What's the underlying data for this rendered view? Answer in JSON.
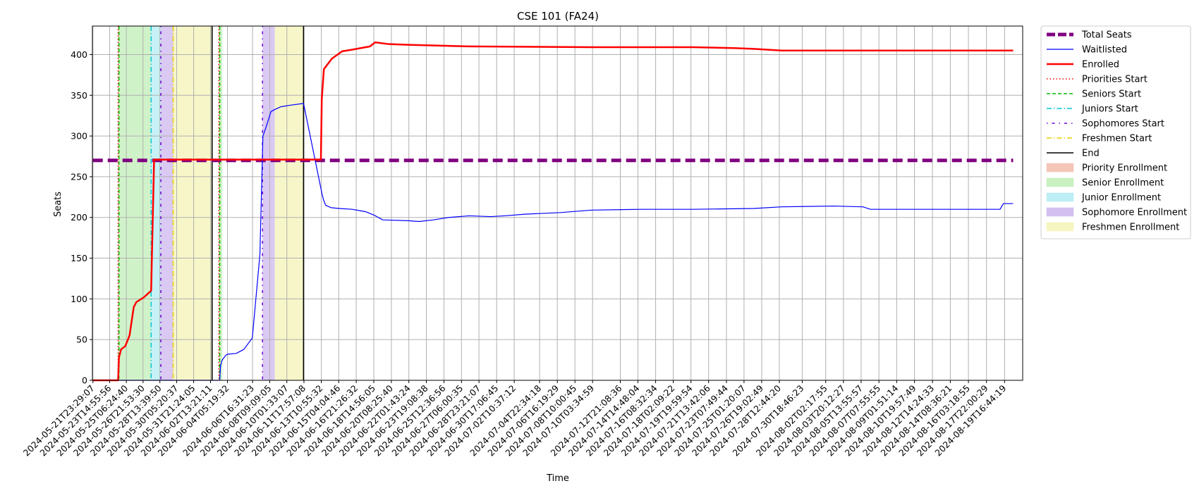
{
  "chart_data": {
    "type": "line",
    "title": "CSE 101 (FA24)",
    "xlabel": "Time",
    "ylabel": "Seats",
    "ylim": [
      0,
      435
    ],
    "xlim_days": [
      -0.05,
      91.5
    ],
    "y_ticks": [
      0,
      50,
      100,
      150,
      200,
      250,
      300,
      350,
      400
    ],
    "x_tick_labels": [
      "2024-05-21T23:29:07",
      "2024-05-23T14:55:56",
      "2024-05-25T06:24:40",
      "2024-05-26T21:53:30",
      "2024-05-28T13:39:50",
      "2024-05-30T05:20:37",
      "2024-05-31T21:24:05",
      "2024-06-02T13:21:11",
      "2024-06-04T05:19:32",
      "2024-06-06T16:31:23",
      "2024-06-08T09:09:05",
      "2024-06-10T01:33:07",
      "2024-06-11T17:57:08",
      "2024-06-13T10:55:32",
      "2024-06-15T04:04:46",
      "2024-06-16T21:26:32",
      "2024-06-18T14:56:05",
      "2024-06-20T08:25:40",
      "2024-06-22T01:43:24",
      "2024-06-23T19:08:38",
      "2024-06-25T12:36:56",
      "2024-06-27T06:00:35",
      "2024-06-28T23:21:07",
      "2024-06-30T17:06:45",
      "2024-07-02T10:37:12",
      "2024-07-04T22:34:18",
      "2024-07-06T16:19:29",
      "2024-07-08T10:00:45",
      "2024-07-10T03:34:59",
      "2024-07-12T21:08:36",
      "2024-07-14T14:48:04",
      "2024-07-16T08:32:34",
      "2024-07-18T02:09:22",
      "2024-07-19T19:59:54",
      "2024-07-21T13:42:06",
      "2024-07-23T07:49:44",
      "2024-07-25T01:20:07",
      "2024-07-26T19:02:49",
      "2024-07-28T12:44:20",
      "2024-07-30T18:46:23",
      "2024-08-02T02:17:55",
      "2024-08-03T20:12:27",
      "2024-08-05T13:55:57",
      "2024-08-07T07:55:55",
      "2024-08-09T01:51:14",
      "2024-08-10T19:57:49",
      "2024-08-12T14:24:33",
      "2024-08-14T08:36:21",
      "2024-08-16T03:18:55",
      "2024-08-17T22:00:29",
      "2024-08-19T16:44:19"
    ],
    "phases": [
      {
        "name": "Priority Enrollment",
        "start": "2024-05-24T11:00:00",
        "end": "2024-05-24T13:00:00",
        "color": "#f4c6b8"
      },
      {
        "name": "Senior Enrollment",
        "start": "2024-05-24T13:00:00",
        "end": "2024-05-27T17:00:00",
        "color": "#c8f0c0"
      },
      {
        "name": "Junior Enrollment",
        "start": "2024-05-27T17:00:00",
        "end": "2024-05-28T16:00:00",
        "color": "#bdeef5"
      },
      {
        "name": "Sophomore Enrollment",
        "start": "2024-05-28T16:00:00",
        "end": "2024-05-29T21:00:00",
        "color": "#d3c0f0"
      },
      {
        "name": "Freshmen Enrollment",
        "start": "2024-05-29T21:00:00",
        "end": "2024-06-02T17:00:00",
        "color": "#f5f5c0"
      },
      {
        "name": "Priority Enrollment",
        "start": "2024-06-03T09:00:00",
        "end": "2024-06-03T11:00:00",
        "color": "#f4c6b8"
      },
      {
        "name": "Senior Enrollment",
        "start": "2024-06-03T11:00:00",
        "end": "2024-06-03T17:00:00",
        "color": "#c8f0c0"
      },
      {
        "name": "Sophomore Enrollment",
        "start": "2024-06-07T16:00:00",
        "end": "2024-06-08T21:00:00",
        "color": "#d3c0f0"
      },
      {
        "name": "Freshmen Enrollment",
        "start": "2024-06-08T21:00:00",
        "end": "2024-06-11T17:00:00",
        "color": "#f5f5c0"
      }
    ],
    "vlines": [
      {
        "name": "Priorities Start",
        "x": "2024-05-24T11:00:00",
        "color": "#ff0000",
        "style": "dotted"
      },
      {
        "name": "Seniors Start",
        "x": "2024-05-24T13:00:00",
        "color": "#00bb00",
        "style": "dashed"
      },
      {
        "name": "Juniors Start",
        "x": "2024-05-27T17:00:00",
        "color": "#00c8d8",
        "style": "dashdot"
      },
      {
        "name": "Sophomores Start",
        "x": "2024-05-28T16:00:00",
        "color": "#6a00d4",
        "style": "dashdot2"
      },
      {
        "name": "Freshmen Start",
        "x": "2024-05-29T21:00:00",
        "color": "#e8d000",
        "style": "dashdot"
      },
      {
        "name": "End",
        "x": "2024-06-02T17:00:00",
        "color": "#000000",
        "style": "solid"
      },
      {
        "name": "Priorities Start",
        "x": "2024-06-03T09:00:00",
        "color": "#ff0000",
        "style": "dotted"
      },
      {
        "name": "Seniors Start",
        "x": "2024-06-03T11:00:00",
        "color": "#00bb00",
        "style": "dashed"
      },
      {
        "name": "Sophomores Start",
        "x": "2024-06-07T16:00:00",
        "color": "#6a00d4",
        "style": "dashdot2"
      },
      {
        "name": "End",
        "x": "2024-06-11T17:00:00",
        "color": "#000000",
        "style": "solid"
      }
    ],
    "series": [
      {
        "name": "Total Seats",
        "color": "#800080",
        "style": "dashed-thick",
        "x": [
          "2024-05-21T23:29:07",
          "2024-08-20T13:00:00"
        ],
        "y": [
          270,
          270
        ]
      },
      {
        "name": "Waitlisted",
        "color": "#0000ff",
        "style": "solid-thin",
        "x": [
          "2024-05-21T23:29:07",
          "2024-06-03T11:00:00",
          "2024-06-03T13:00:00",
          "2024-06-03T17:00:00",
          "2024-06-04T00:00:00",
          "2024-06-04T05:00:00",
          "2024-06-05T02:00:00",
          "2024-06-05T20:00:00",
          "2024-06-06T16:00:00",
          "2024-06-07T10:00:00",
          "2024-06-07T17:00:00",
          "2024-06-08T00:00:00",
          "2024-06-08T12:00:00",
          "2024-06-08T23:00:00",
          "2024-06-09T12:00:00",
          "2024-06-10T12:00:00",
          "2024-06-11T17:00:00",
          "2024-06-13T13:00:00",
          "2024-06-13T16:00:00",
          "2024-06-13T21:00:00",
          "2024-06-14T10:00:00",
          "2024-06-15T05:00:00",
          "2024-06-16T12:00:00",
          "2024-06-17T20:00:00",
          "2024-06-18T15:00:00",
          "2024-06-19T12:00:00",
          "2024-06-22T00:00:00",
          "2024-06-23T02:00:00",
          "2024-06-24T12:00:00",
          "2024-06-26T00:00:00",
          "2024-06-28T00:00:00",
          "2024-06-30T03:00:00",
          "2024-07-01T12:00:00",
          "2024-07-03T12:00:00",
          "2024-07-07T00:00:00",
          "2024-07-10T02:00:00",
          "2024-07-15T00:00:00",
          "2024-07-20T00:00:00",
          "2024-07-26T00:00:00",
          "2024-07-28T18:00:00",
          "2024-08-02T22:00:00",
          "2024-08-05T18:00:00",
          "2024-08-06T12:00:00",
          "2024-08-19T06:00:00",
          "2024-08-19T14:00:00",
          "2024-08-20T13:00:00"
        ],
        "y": [
          0,
          0,
          18,
          25,
          30,
          32,
          33,
          38,
          52,
          155,
          300,
          310,
          330,
          333,
          336,
          338,
          340,
          228,
          222,
          215,
          212,
          211,
          210,
          207,
          203,
          197,
          196,
          195,
          197,
          200,
          202,
          201,
          202,
          204,
          206,
          209,
          210,
          210,
          211,
          213,
          214,
          213,
          210,
          210,
          217,
          217
        ]
      },
      {
        "name": "Enrolled",
        "color": "#ff0000",
        "style": "solid-thick",
        "x": [
          "2024-05-21T23:29:07",
          "2024-05-24T11:00:00",
          "2024-05-24T13:00:00",
          "2024-05-24T18:00:00",
          "2024-05-25T04:00:00",
          "2024-05-25T14:00:00",
          "2024-05-26T00:00:00",
          "2024-05-26T06:00:00",
          "2024-05-27T00:00:00",
          "2024-05-27T17:00:00",
          "2024-05-28T00:00:00",
          "2024-05-28T06:00:00",
          "2024-06-13T10:00:00",
          "2024-06-13T12:00:00",
          "2024-06-13T17:00:00",
          "2024-06-14T12:00:00",
          "2024-06-15T12:00:00",
          "2024-06-16T12:00:00",
          "2024-06-18T06:00:00",
          "2024-06-18T18:00:00",
          "2024-06-20T00:00:00",
          "2024-06-22T00:00:00",
          "2024-06-25T00:00:00",
          "2024-06-28T00:00:00",
          "2024-07-10T02:00:00",
          "2024-07-20T00:00:00",
          "2024-07-24T00:00:00",
          "2024-07-26T00:00:00",
          "2024-07-28T18:00:00",
          "2024-08-20T13:00:00"
        ],
        "y": [
          0,
          0,
          28,
          38,
          42,
          55,
          90,
          96,
          102,
          110,
          271,
          271,
          271,
          345,
          382,
          395,
          404,
          406,
          410,
          415,
          413,
          412,
          411,
          410,
          409,
          409,
          408,
          407,
          405,
          405
        ]
      }
    ],
    "legend": {
      "placement": "outside-right",
      "entries": [
        {
          "label": "Total Seats",
          "kind": "line",
          "color": "#800080",
          "style": "dashed-thick"
        },
        {
          "label": "Waitlisted",
          "kind": "line",
          "color": "#0000ff",
          "style": "solid-thin"
        },
        {
          "label": "Enrolled",
          "kind": "line",
          "color": "#ff0000",
          "style": "solid-thick"
        },
        {
          "label": "Priorities Start",
          "kind": "line",
          "color": "#ff0000",
          "style": "dotted"
        },
        {
          "label": "Seniors Start",
          "kind": "line",
          "color": "#00bb00",
          "style": "dashed"
        },
        {
          "label": "Juniors Start",
          "kind": "line",
          "color": "#00c8d8",
          "style": "dashdot"
        },
        {
          "label": "Sophomores Start",
          "kind": "line",
          "color": "#6a00d4",
          "style": "dashdot2"
        },
        {
          "label": "Freshmen Start",
          "kind": "line",
          "color": "#e8d000",
          "style": "dashdot"
        },
        {
          "label": "End",
          "kind": "line",
          "color": "#000000",
          "style": "solid"
        },
        {
          "label": "Priority Enrollment",
          "kind": "patch",
          "color": "#f4c6b8"
        },
        {
          "label": "Senior Enrollment",
          "kind": "patch",
          "color": "#c8f0c0"
        },
        {
          "label": "Junior Enrollment",
          "kind": "patch",
          "color": "#bdeef5"
        },
        {
          "label": "Sophomore Enrollment",
          "kind": "patch",
          "color": "#d3c0f0"
        },
        {
          "label": "Freshmen Enrollment",
          "kind": "patch",
          "color": "#f5f5c0"
        }
      ]
    },
    "grid": true
  }
}
